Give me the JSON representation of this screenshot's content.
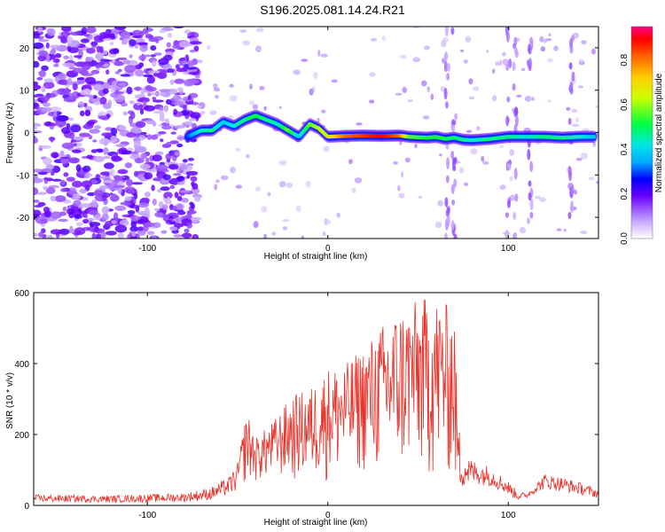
{
  "title": "S196.2025.081.14.24.R21",
  "chart_data": [
    {
      "type": "heatmap",
      "xlabel": "Height of straight line (km)",
      "ylabel": "Frequency (Hz)",
      "xlim": [
        -163,
        150
      ],
      "ylim": [
        -25,
        25
      ],
      "x_ticks": [
        -100,
        0,
        100
      ],
      "y_ticks": [
        -20,
        -10,
        0,
        10,
        20
      ],
      "colorbar": {
        "label": "Normalized spectral amplitude",
        "range": [
          0,
          0.95
        ],
        "ticks": [
          "0.0",
          "0.2",
          "0.4",
          "0.6",
          "0.8"
        ],
        "tick_values": [
          0,
          0.2,
          0.4,
          0.6,
          0.8
        ]
      },
      "ridge": {
        "x": [
          -78,
          -70,
          -64,
          -58,
          -52,
          -46,
          -40,
          -34,
          -28,
          -22,
          -16,
          -10,
          -5,
          0,
          10,
          20,
          30,
          40,
          45,
          55,
          60,
          65,
          70,
          75,
          80,
          90,
          100,
          110,
          120,
          130,
          140,
          148
        ],
        "y": [
          -1.0,
          0.5,
          0.5,
          2.5,
          1.5,
          3.0,
          4.0,
          3.0,
          2.0,
          0.5,
          -1.0,
          2.0,
          1.0,
          -1.0,
          -0.8,
          -0.7,
          -0.8,
          -0.7,
          -1.0,
          -1.2,
          -1.0,
          -1.5,
          -1.2,
          -1.7,
          -1.8,
          -1.5,
          -1.0,
          -1.0,
          -1.0,
          -1.2,
          -1.0,
          -1.0
        ],
        "amplitude": [
          0.3,
          0.45,
          0.5,
          0.4,
          0.45,
          0.5,
          0.55,
          0.5,
          0.45,
          0.6,
          0.4,
          0.6,
          0.65,
          0.7,
          0.85,
          0.9,
          0.95,
          0.85,
          0.6,
          0.55,
          0.55,
          0.55,
          0.5,
          0.5,
          0.45,
          0.5,
          0.5,
          0.45,
          0.5,
          0.5,
          0.45,
          0.4
        ]
      }
    },
    {
      "type": "line",
      "xlabel": "Height of straight line (km)",
      "ylabel": "SNR (10 * v/v)",
      "xlim": [
        -163,
        150
      ],
      "ylim": [
        0,
        600
      ],
      "x_ticks": [
        -100,
        0,
        100
      ],
      "y_ticks": [
        0,
        200,
        400,
        600
      ],
      "series": [
        {
          "color": "#e8322a",
          "envelope": {
            "x": [
              -163,
              -120,
              -80,
              -65,
              -55,
              -50,
              -45,
              -40,
              -30,
              -20,
              -10,
              0,
              10,
              20,
              30,
              40,
              45,
              50,
              55,
              58,
              62,
              65,
              70,
              72,
              75,
              80,
              90,
              100,
              105,
              110,
              115,
              120,
              130,
              140,
              150
            ],
            "max": [
              30,
              28,
              35,
              50,
              80,
              120,
              270,
              190,
              240,
              310,
              330,
              390,
              400,
              450,
              510,
              560,
              570,
              580,
              590,
              600,
              580,
              570,
              560,
              250,
              150,
              130,
              110,
              70,
              40,
              35,
              60,
              90,
              80,
              65,
              45
            ],
            "min": [
              10,
              8,
              10,
              15,
              30,
              40,
              60,
              60,
              70,
              60,
              60,
              60,
              70,
              80,
              60,
              60,
              80,
              70,
              60,
              50,
              60,
              70,
              40,
              30,
              50,
              60,
              55,
              30,
              15,
              20,
              35,
              45,
              40,
              30,
              20
            ]
          }
        }
      ]
    }
  ]
}
